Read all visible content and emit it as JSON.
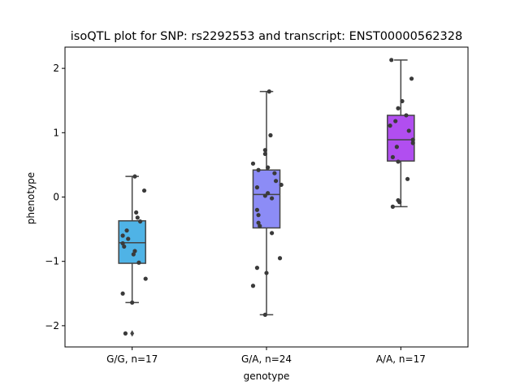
{
  "chart_data": {
    "type": "box",
    "title": "isoQTL plot for SNP: rs2292553 and transcript: ENST00000562328",
    "xlabel": "genotype",
    "ylabel": "phenotype",
    "categories": [
      "G/G, n=17",
      "G/A, n=24",
      "A/A, n=17"
    ],
    "ylim": [
      -2.33,
      2.33
    ],
    "yticks": [
      -2,
      -1,
      0,
      1,
      2
    ],
    "yticklabels": [
      "−2",
      "−1",
      "0",
      "1",
      "2"
    ],
    "grid": false,
    "legend": "none",
    "boxes": [
      {
        "category": "G/G, n=17",
        "color": "#4fb3e6",
        "q1": -1.03,
        "median": -0.71,
        "q3": -0.37,
        "whisker_low": -1.64,
        "whisker_high": 0.32,
        "outliers": [
          -2.12
        ]
      },
      {
        "category": "G/A, n=24",
        "color": "#8c8cf6",
        "q1": -0.48,
        "median": 0.04,
        "q3": 0.42,
        "whisker_low": -1.83,
        "whisker_high": 1.64,
        "outliers": []
      },
      {
        "category": "A/A, n=17",
        "color": "#b14ef0",
        "q1": 0.56,
        "median": 0.89,
        "q3": 1.27,
        "whisker_low": -0.15,
        "whisker_high": 2.13,
        "outliers": []
      }
    ],
    "points": [
      [
        -2.12,
        -1.64,
        -1.5,
        -1.27,
        -1.02,
        -0.89,
        -0.84,
        -0.77,
        -0.72,
        -0.65,
        -0.6,
        -0.52,
        -0.38,
        -0.32,
        -0.24,
        0.1,
        0.32
      ],
      [
        -1.83,
        -1.38,
        -1.18,
        -1.1,
        -0.95,
        -0.56,
        -0.45,
        -0.4,
        -0.28,
        -0.2,
        -0.02,
        0.02,
        0.06,
        0.15,
        0.19,
        0.25,
        0.37,
        0.42,
        0.46,
        0.52,
        0.67,
        0.73,
        0.96,
        1.64
      ],
      [
        -0.15,
        -0.08,
        -0.05,
        0.28,
        0.55,
        0.62,
        0.78,
        0.84,
        0.89,
        1.03,
        1.11,
        1.18,
        1.27,
        1.38,
        1.49,
        1.84,
        2.13
      ]
    ],
    "point_offsets": [
      [
        -0.05,
        0.0,
        -0.07,
        0.1,
        0.05,
        0.01,
        0.02,
        -0.06,
        -0.07,
        -0.03,
        -0.07,
        -0.04,
        0.06,
        0.04,
        0.03,
        0.09,
        0.02
      ],
      [
        -0.01,
        -0.1,
        0.0,
        -0.07,
        0.1,
        0.04,
        -0.05,
        -0.06,
        -0.06,
        -0.07,
        0.04,
        -0.01,
        0.01,
        -0.07,
        0.11,
        0.07,
        0.06,
        -0.06,
        0.01,
        -0.1,
        -0.01,
        -0.01,
        0.03,
        0.02
      ],
      [
        -0.06,
        -0.01,
        -0.02,
        0.05,
        -0.02,
        -0.06,
        -0.03,
        0.09,
        0.09,
        0.06,
        -0.08,
        -0.04,
        0.04,
        -0.02,
        0.01,
        0.08,
        -0.07
      ]
    ],
    "point_color": "#3a3a3a",
    "outlier_marker": "diamond"
  }
}
